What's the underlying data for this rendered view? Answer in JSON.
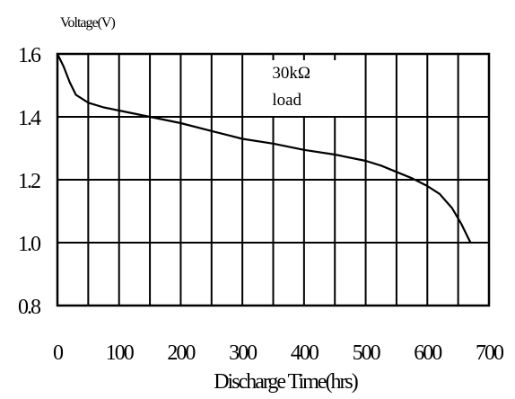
{
  "chart_data": {
    "type": "line",
    "title": "",
    "xlabel": "Discharge Time(hrs)",
    "ylabel": "Voltage(V)",
    "xlim": [
      0,
      700
    ],
    "ylim": [
      0.8,
      1.6
    ],
    "x_ticks": [
      0,
      100,
      200,
      300,
      400,
      500,
      600,
      700
    ],
    "x_tick_labels": [
      "0",
      "100",
      "200",
      "300",
      "400",
      "500",
      "600",
      "700"
    ],
    "y_ticks": [
      0.8,
      1.0,
      1.2,
      1.4,
      1.6
    ],
    "y_tick_labels": [
      "0.8",
      "1.0",
      "1.2",
      "1.4",
      "1.6"
    ],
    "x_gridlines": [
      0,
      50,
      100,
      150,
      200,
      250,
      300,
      350,
      400,
      450,
      500,
      550,
      600,
      650,
      700
    ],
    "y_gridlines": [
      0.8,
      1.0,
      1.2,
      1.4,
      1.6
    ],
    "grid": true,
    "series": [
      {
        "x": [
          0,
          10,
          20,
          30,
          50,
          75,
          100,
          125,
          150,
          200,
          250,
          300,
          350,
          400,
          450,
          500,
          525,
          550,
          575,
          600,
          620,
          640,
          655,
          670
        ],
        "values": [
          1.6,
          1.56,
          1.51,
          1.47,
          1.445,
          1.43,
          1.42,
          1.41,
          1.4,
          1.38,
          1.355,
          1.33,
          1.315,
          1.295,
          1.28,
          1.26,
          1.245,
          1.225,
          1.205,
          1.18,
          1.155,
          1.11,
          1.06,
          1.0
        ]
      }
    ],
    "annotation": {
      "lines": [
        "30kΩ",
        "load"
      ],
      "x": 520,
      "y": 1.5
    }
  }
}
